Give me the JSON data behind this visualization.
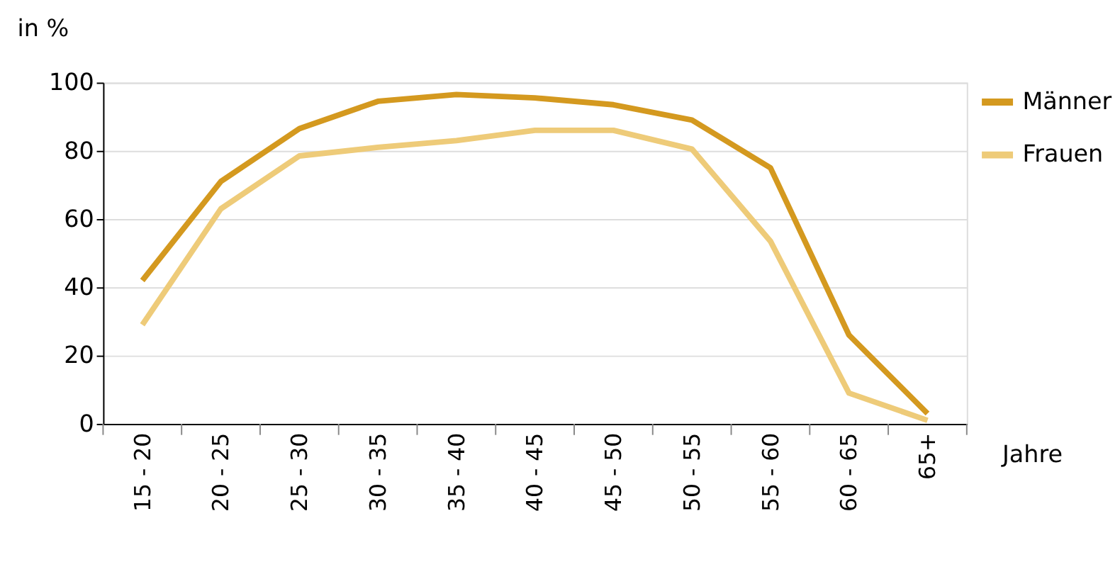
{
  "chart_data": {
    "type": "line",
    "xlabel": "Jahre",
    "ylabel": "in %",
    "categories": [
      "15 - 20",
      "20 - 25",
      "25 - 30",
      "30 - 35",
      "35 - 40",
      "40 - 45",
      "45 - 50",
      "50 - 55",
      "55 - 60",
      "60 - 65",
      "65+"
    ],
    "series": [
      {
        "name": "Männer",
        "color": "#d4991f",
        "values": [
          42,
          71,
          86.5,
          94.5,
          96.5,
          95.5,
          93.5,
          89,
          75,
          26,
          3
        ]
      },
      {
        "name": "Frauen",
        "color": "#eecb79",
        "values": [
          29,
          63,
          78.5,
          81,
          83,
          86,
          86,
          80.5,
          53.5,
          9,
          1
        ]
      }
    ],
    "ylim": [
      0,
      100
    ],
    "yticks": [
      0,
      20,
      40,
      60,
      80,
      100
    ],
    "grid": "y",
    "legend": "right",
    "marker": "none",
    "line_style": "solid"
  }
}
